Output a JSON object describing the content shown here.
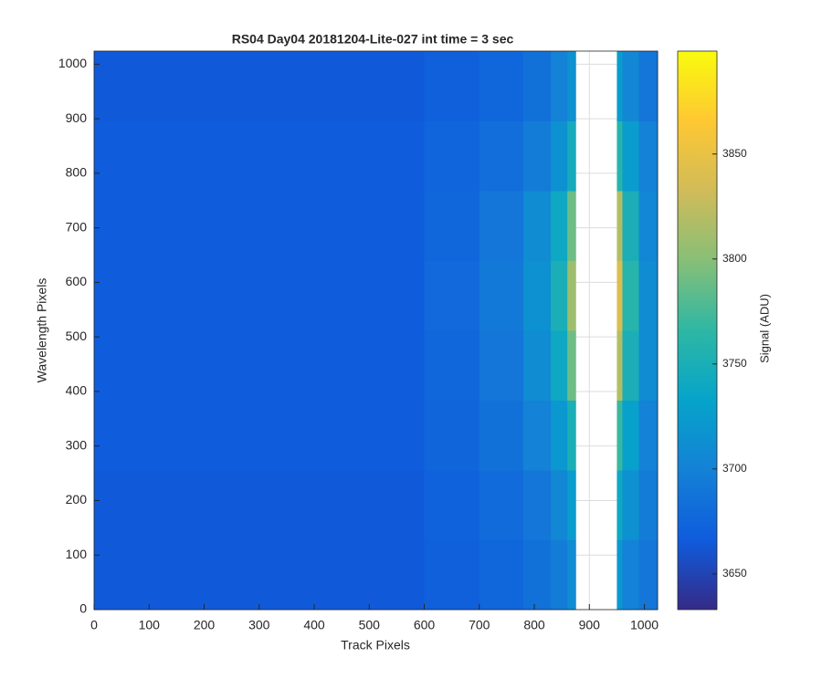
{
  "chart_data": {
    "type": "heatmap",
    "title": "RS04 Day04 20181204-Lite-027 int time = 3 sec",
    "x_label": "Track Pixels",
    "y_label": "Wavelength Pixels",
    "colorbar_label": "Signal (ADU)",
    "x_edges": [
      0,
      600,
      700,
      780,
      830,
      860,
      875,
      950,
      960,
      990,
      1024
    ],
    "y_edges": [
      0,
      128,
      256,
      384,
      512,
      640,
      768,
      896,
      1024
    ],
    "z": [
      [
        3665,
        3670,
        3675,
        3685,
        3695,
        3710,
        null,
        3720,
        3700,
        3690
      ],
      [
        3665,
        3672,
        3680,
        3690,
        3705,
        3725,
        null,
        3740,
        3715,
        3695
      ],
      [
        3666,
        3674,
        3685,
        3700,
        3720,
        3750,
        null,
        3770,
        3730,
        3700
      ],
      [
        3667,
        3676,
        3690,
        3710,
        3740,
        3790,
        null,
        3820,
        3750,
        3710
      ],
      [
        3667,
        3678,
        3692,
        3715,
        3750,
        3810,
        null,
        3840,
        3760,
        3710
      ],
      [
        3667,
        3676,
        3690,
        3710,
        3740,
        3790,
        null,
        3820,
        3750,
        3705
      ],
      [
        3666,
        3673,
        3682,
        3695,
        3715,
        3745,
        null,
        3760,
        3725,
        3700
      ],
      [
        3665,
        3670,
        3676,
        3685,
        3700,
        3715,
        null,
        3725,
        3705,
        3690
      ]
    ],
    "xlim": [
      0,
      1024
    ],
    "ylim": [
      0,
      1024
    ],
    "xticks": [
      0,
      100,
      200,
      300,
      400,
      500,
      600,
      700,
      800,
      900,
      1000
    ],
    "yticks": [
      0,
      100,
      200,
      300,
      400,
      500,
      600,
      700,
      800,
      900,
      1000
    ],
    "clim": [
      3633,
      3899
    ],
    "cticks": [
      3650,
      3700,
      3750,
      3800,
      3850
    ],
    "colormap": [
      "#352a87",
      "#0f5cdd",
      "#1481d6",
      "#06a4ca",
      "#2eb7a4",
      "#87bf77",
      "#d1bb59",
      "#fec832",
      "#f9fb0e"
    ],
    "grid": true
  }
}
